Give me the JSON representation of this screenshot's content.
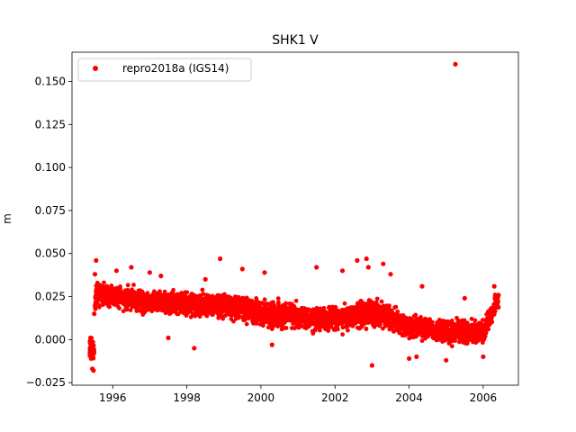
{
  "chart_data": {
    "type": "scatter",
    "title": "SHK1 V",
    "xlabel": "",
    "ylabel": "m",
    "xlim": [
      1994.9,
      2006.95
    ],
    "ylim": [
      -0.0265,
      0.167
    ],
    "x_ticks": [
      1996,
      1998,
      2000,
      2002,
      2004,
      2006
    ],
    "x_tick_labels": [
      "1996",
      "1998",
      "2000",
      "2002",
      "2004",
      "2006"
    ],
    "y_ticks": [
      -0.025,
      0.0,
      0.025,
      0.05,
      0.075,
      0.1,
      0.125,
      0.15
    ],
    "y_tick_labels": [
      "−0.025",
      "0.000",
      "0.025",
      "0.050",
      "0.075",
      "0.100",
      "0.125",
      "0.150"
    ],
    "grid": false,
    "legend_position": "top-left",
    "series": [
      {
        "name": "repro2018a (IGS14)",
        "color": "#ff0000",
        "marker": "circle",
        "trend": [
          [
            1995.42,
            -0.008,
            0.006
          ],
          [
            1995.55,
            0.028,
            0.005
          ],
          [
            1996.0,
            0.025,
            0.005
          ],
          [
            1997.0,
            0.022,
            0.005
          ],
          [
            1998.0,
            0.021,
            0.005
          ],
          [
            1999.0,
            0.02,
            0.005
          ],
          [
            2000.0,
            0.016,
            0.006
          ],
          [
            2001.0,
            0.013,
            0.005
          ],
          [
            2002.0,
            0.012,
            0.005
          ],
          [
            2003.0,
            0.016,
            0.006
          ],
          [
            2004.0,
            0.008,
            0.005
          ],
          [
            2005.0,
            0.005,
            0.005
          ],
          [
            2006.0,
            0.004,
            0.005
          ],
          [
            2006.4,
            0.024,
            0.004
          ]
        ],
        "outliers": [
          [
            1995.55,
            0.046
          ],
          [
            1995.52,
            0.038
          ],
          [
            1995.5,
            0.015
          ],
          [
            1995.45,
            -0.017
          ],
          [
            1995.48,
            -0.018
          ],
          [
            1995.4,
            0.001
          ],
          [
            1996.1,
            0.04
          ],
          [
            1996.5,
            0.042
          ],
          [
            1997.0,
            0.039
          ],
          [
            1997.3,
            0.037
          ],
          [
            1997.5,
            0.001
          ],
          [
            1998.2,
            -0.005
          ],
          [
            1998.5,
            0.035
          ],
          [
            1998.9,
            0.047
          ],
          [
            1999.5,
            0.041
          ],
          [
            2000.1,
            0.039
          ],
          [
            2000.3,
            -0.003
          ],
          [
            2001.5,
            0.042
          ],
          [
            2002.2,
            0.04
          ],
          [
            2002.6,
            0.046
          ],
          [
            2002.85,
            0.047
          ],
          [
            2002.9,
            0.042
          ],
          [
            2003.0,
            -0.015
          ],
          [
            2003.3,
            0.044
          ],
          [
            2003.5,
            0.038
          ],
          [
            2004.0,
            -0.011
          ],
          [
            2004.2,
            -0.01
          ],
          [
            2004.35,
            0.031
          ],
          [
            2005.0,
            -0.012
          ],
          [
            2005.25,
            0.16
          ],
          [
            2005.5,
            0.024
          ],
          [
            2006.0,
            -0.01
          ],
          [
            2006.3,
            0.031
          ]
        ]
      }
    ]
  }
}
